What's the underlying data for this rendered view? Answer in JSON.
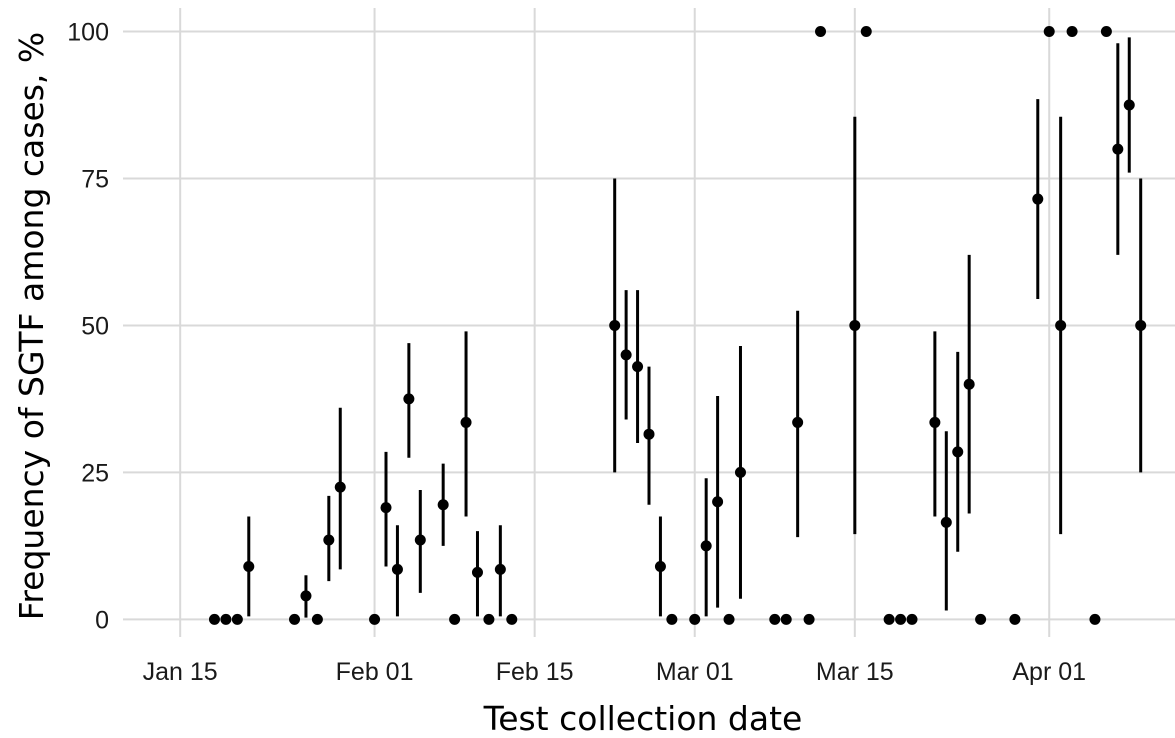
{
  "chart_data": {
    "type": "scatter",
    "title": "",
    "xlabel": "Test collection date",
    "ylabel": "Frequency of SGTF among cases, %",
    "x_ticks": [
      "2021-01-15",
      "2021-02-01",
      "2021-02-15",
      "2021-03-01",
      "2021-03-15",
      "2021-04-01"
    ],
    "x_tick_labels": [
      "Jan 15",
      "Feb 01",
      "Feb 15",
      "Mar 01",
      "Mar 15",
      "Apr 01"
    ],
    "xlim": [
      "2021-01-10",
      "2021-04-12"
    ],
    "y_ticks": [
      0,
      25,
      50,
      75,
      100
    ],
    "y_tick_labels": [
      "0",
      "25",
      "50",
      "75",
      "100"
    ],
    "ylim": [
      -3,
      104
    ],
    "grid": true,
    "legend": "none",
    "points": [
      {
        "x": "2021-01-18",
        "y": 0
      },
      {
        "x": "2021-01-19",
        "y": 0
      },
      {
        "x": "2021-01-20",
        "y": 0
      },
      {
        "x": "2021-01-21",
        "y": 9,
        "lo": 0.5,
        "hi": 17.5
      },
      {
        "x": "2021-01-25",
        "y": 0
      },
      {
        "x": "2021-01-26",
        "y": 4,
        "lo": 0.3,
        "hi": 7.5
      },
      {
        "x": "2021-01-27",
        "y": 0
      },
      {
        "x": "2021-01-28",
        "y": 13.5,
        "lo": 6.5,
        "hi": 21
      },
      {
        "x": "2021-01-29",
        "y": 22.5,
        "lo": 8.5,
        "hi": 36
      },
      {
        "x": "2021-02-01",
        "y": 0
      },
      {
        "x": "2021-02-02",
        "y": 19,
        "lo": 9,
        "hi": 28.5
      },
      {
        "x": "2021-02-03",
        "y": 8.5,
        "lo": 0.5,
        "hi": 16
      },
      {
        "x": "2021-02-04",
        "y": 37.5,
        "lo": 27.5,
        "hi": 47
      },
      {
        "x": "2021-02-05",
        "y": 13.5,
        "lo": 4.5,
        "hi": 22
      },
      {
        "x": "2021-02-07",
        "y": 19.5,
        "lo": 12.5,
        "hi": 26.5
      },
      {
        "x": "2021-02-08",
        "y": 0
      },
      {
        "x": "2021-02-09",
        "y": 33.5,
        "lo": 17.5,
        "hi": 49
      },
      {
        "x": "2021-02-10",
        "y": 8,
        "lo": 0.5,
        "hi": 15
      },
      {
        "x": "2021-02-11",
        "y": 0
      },
      {
        "x": "2021-02-12",
        "y": 8.5,
        "lo": 0.5,
        "hi": 16
      },
      {
        "x": "2021-02-13",
        "y": 0
      },
      {
        "x": "2021-02-22",
        "y": 50,
        "lo": 25,
        "hi": 75
      },
      {
        "x": "2021-02-23",
        "y": 45,
        "lo": 34,
        "hi": 56
      },
      {
        "x": "2021-02-24",
        "y": 43,
        "lo": 30,
        "hi": 56
      },
      {
        "x": "2021-02-25",
        "y": 31.5,
        "lo": 19.5,
        "hi": 43
      },
      {
        "x": "2021-02-26",
        "y": 9,
        "lo": 0.5,
        "hi": 17.5
      },
      {
        "x": "2021-02-27",
        "y": 0
      },
      {
        "x": "2021-03-01",
        "y": 0
      },
      {
        "x": "2021-03-02",
        "y": 12.5,
        "lo": 0.5,
        "hi": 24
      },
      {
        "x": "2021-03-03",
        "y": 20,
        "lo": 2,
        "hi": 38
      },
      {
        "x": "2021-03-04",
        "y": 0
      },
      {
        "x": "2021-03-05",
        "y": 25,
        "lo": 3.5,
        "hi": 46.5
      },
      {
        "x": "2021-03-08",
        "y": 0
      },
      {
        "x": "2021-03-09",
        "y": 0
      },
      {
        "x": "2021-03-10",
        "y": 33.5,
        "lo": 14,
        "hi": 52.5
      },
      {
        "x": "2021-03-11",
        "y": 0
      },
      {
        "x": "2021-03-12",
        "y": 100
      },
      {
        "x": "2021-03-15",
        "y": 50,
        "lo": 14.5,
        "hi": 85.5
      },
      {
        "x": "2021-03-16",
        "y": 100
      },
      {
        "x": "2021-03-18",
        "y": 0
      },
      {
        "x": "2021-03-19",
        "y": 0
      },
      {
        "x": "2021-03-20",
        "y": 0
      },
      {
        "x": "2021-03-22",
        "y": 33.5,
        "lo": 17.5,
        "hi": 49
      },
      {
        "x": "2021-03-23",
        "y": 16.5,
        "lo": 1.5,
        "hi": 32
      },
      {
        "x": "2021-03-24",
        "y": 28.5,
        "lo": 11.5,
        "hi": 45.5
      },
      {
        "x": "2021-03-25",
        "y": 40,
        "lo": 18,
        "hi": 62
      },
      {
        "x": "2021-03-26",
        "y": 0
      },
      {
        "x": "2021-03-29",
        "y": 0
      },
      {
        "x": "2021-03-31",
        "y": 71.5,
        "lo": 54.5,
        "hi": 88.5
      },
      {
        "x": "2021-04-01",
        "y": 100
      },
      {
        "x": "2021-04-02",
        "y": 50,
        "lo": 14.5,
        "hi": 85.5
      },
      {
        "x": "2021-04-03",
        "y": 100
      },
      {
        "x": "2021-04-05",
        "y": 0
      },
      {
        "x": "2021-04-06",
        "y": 100
      },
      {
        "x": "2021-04-07",
        "y": 80,
        "lo": 62,
        "hi": 98
      },
      {
        "x": "2021-04-08",
        "y": 87.5,
        "lo": 76,
        "hi": 99
      },
      {
        "x": "2021-04-09",
        "y": 50,
        "lo": 25,
        "hi": 75
      }
    ]
  }
}
